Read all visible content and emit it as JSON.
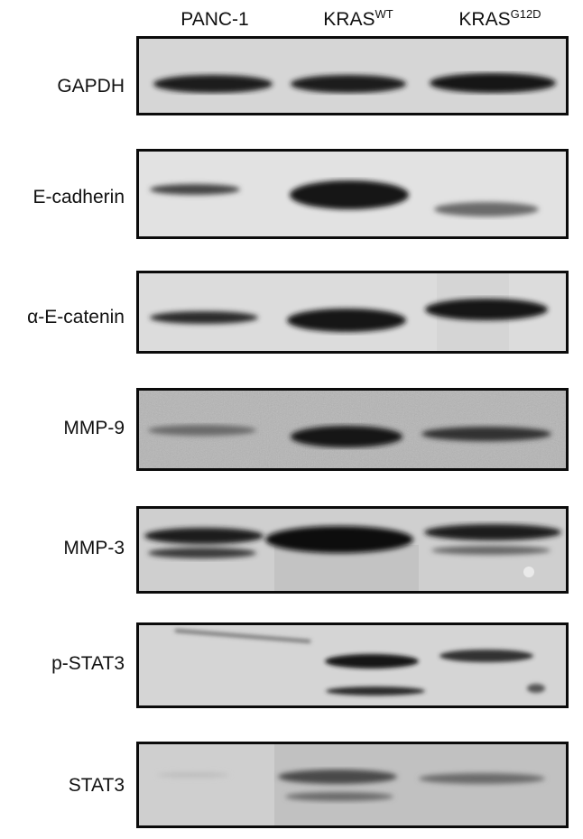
{
  "lanes": [
    {
      "base": "PANC-1",
      "sup": ""
    },
    {
      "base": "KRAS",
      "sup": "WT"
    },
    {
      "base": "KRAS",
      "sup": "G12D"
    }
  ],
  "rows": [
    {
      "key": "gapdh",
      "label": "GAPDH",
      "bg": "#d9d9d9"
    },
    {
      "key": "ecad",
      "label": "E-cadherin",
      "bg": "#e3e3e3"
    },
    {
      "key": "aecat",
      "label": "α-E-catenin",
      "bg": "#dedede"
    },
    {
      "key": "mmp9",
      "label": "MMP-9",
      "bg": "#b9b9b9"
    },
    {
      "key": "mmp3",
      "label": "MMP-3",
      "bg": "#cfcfcf"
    },
    {
      "key": "pstat3",
      "label": "p-STAT3",
      "bg": "#d4d4d4"
    },
    {
      "key": "stat3",
      "label": "STAT3",
      "bg": "#cdcdcd"
    }
  ]
}
